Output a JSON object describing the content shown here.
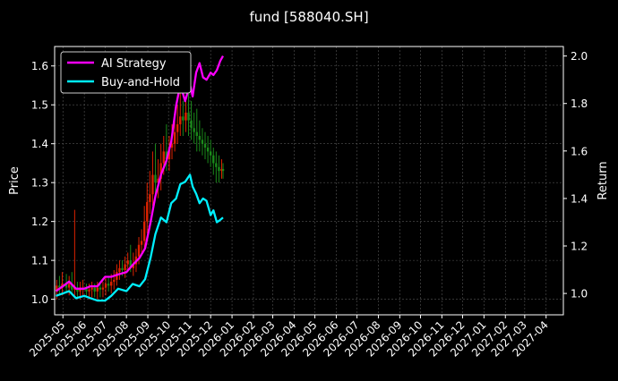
{
  "chart_data": {
    "type": "line",
    "title": "fund [588040.SH]",
    "ylabel_left": "Price",
    "ylabel_right": "Return",
    "ylim_left": [
      0.96,
      1.65
    ],
    "ylim_right": [
      0.91,
      2.04
    ],
    "y_ticks_left": [
      "1.0",
      "1.1",
      "1.2",
      "1.3",
      "1.4",
      "1.5",
      "1.6"
    ],
    "y_ticks_right": [
      "1.0",
      "1.2",
      "1.4",
      "1.6",
      "1.8",
      "2.0"
    ],
    "x_ticks": [
      "2025-05",
      "2025-06",
      "2025-07",
      "2025-08",
      "2025-09",
      "2025-10",
      "2025-11",
      "2025-12",
      "2026-01",
      "2026-02",
      "2026-03",
      "2026-04",
      "2026-05",
      "2026-06",
      "2026-07",
      "2026-08",
      "2026-09",
      "2026-10",
      "2026-11",
      "2026-12",
      "2027-01",
      "2027-02",
      "2027-03",
      "2027-04"
    ],
    "grid": true,
    "legend_position": "top-left",
    "colors": {
      "background": "#000000",
      "up_candle": "#dd2200",
      "down_candle": "#1a8a1a",
      "ai_strategy": "#ff00ff",
      "buy_and_hold": "#00f0ff"
    },
    "series": [
      {
        "name": "AI Strategy",
        "axis": "right",
        "x": [
          "2025-04-21",
          "2025-05-01",
          "2025-05-10",
          "2025-05-20",
          "2025-06-01",
          "2025-06-10",
          "2025-06-20",
          "2025-07-01",
          "2025-07-10",
          "2025-07-20",
          "2025-08-01",
          "2025-08-10",
          "2025-08-20",
          "2025-08-28",
          "2025-09-05",
          "2025-09-12",
          "2025-09-20",
          "2025-09-28",
          "2025-10-05",
          "2025-10-12",
          "2025-10-18",
          "2025-10-25",
          "2025-11-01",
          "2025-11-05",
          "2025-11-10",
          "2025-11-15",
          "2025-11-20",
          "2025-11-25",
          "2025-12-01",
          "2025-12-05",
          "2025-12-10",
          "2025-12-15",
          "2025-12-19"
        ],
        "values": [
          1.01,
          1.03,
          1.05,
          1.02,
          1.02,
          1.03,
          1.03,
          1.07,
          1.07,
          1.08,
          1.09,
          1.12,
          1.15,
          1.19,
          1.3,
          1.41,
          1.5,
          1.56,
          1.64,
          1.79,
          1.88,
          1.81,
          1.88,
          1.83,
          1.93,
          1.97,
          1.91,
          1.9,
          1.93,
          1.92,
          1.94,
          1.98,
          2.0
        ]
      },
      {
        "name": "Buy-and-Hold",
        "axis": "right",
        "x": [
          "2025-04-21",
          "2025-05-01",
          "2025-05-10",
          "2025-05-20",
          "2025-06-01",
          "2025-06-10",
          "2025-06-20",
          "2025-07-01",
          "2025-07-10",
          "2025-07-20",
          "2025-08-01",
          "2025-08-10",
          "2025-08-20",
          "2025-08-28",
          "2025-09-05",
          "2025-09-12",
          "2025-09-20",
          "2025-09-28",
          "2025-10-05",
          "2025-10-12",
          "2025-10-18",
          "2025-10-25",
          "2025-11-01",
          "2025-11-05",
          "2025-11-10",
          "2025-11-15",
          "2025-11-20",
          "2025-11-25",
          "2025-12-01",
          "2025-12-05",
          "2025-12-10",
          "2025-12-15",
          "2025-12-19"
        ],
        "values": [
          0.99,
          1.0,
          1.01,
          0.98,
          0.99,
          0.98,
          0.97,
          0.97,
          0.99,
          1.02,
          1.01,
          1.04,
          1.03,
          1.06,
          1.15,
          1.25,
          1.32,
          1.3,
          1.38,
          1.4,
          1.46,
          1.47,
          1.5,
          1.45,
          1.42,
          1.38,
          1.4,
          1.39,
          1.33,
          1.35,
          1.3,
          1.31,
          1.32
        ]
      }
    ],
    "candles": {
      "axis": "left",
      "x": [
        "2025-04-22",
        "2025-04-26",
        "2025-04-30",
        "2025-05-06",
        "2025-05-10",
        "2025-05-14",
        "2025-05-18",
        "2025-05-22",
        "2025-05-26",
        "2025-05-30",
        "2025-06-04",
        "2025-06-08",
        "2025-06-12",
        "2025-06-16",
        "2025-06-20",
        "2025-06-24",
        "2025-06-28",
        "2025-07-02",
        "2025-07-06",
        "2025-07-10",
        "2025-07-14",
        "2025-07-18",
        "2025-07-22",
        "2025-07-26",
        "2025-07-30",
        "2025-08-03",
        "2025-08-07",
        "2025-08-11",
        "2025-08-15",
        "2025-08-19",
        "2025-08-23",
        "2025-08-27",
        "2025-08-31",
        "2025-09-04",
        "2025-09-08",
        "2025-09-12",
        "2025-09-16",
        "2025-09-20",
        "2025-09-24",
        "2025-09-28",
        "2025-10-02",
        "2025-10-06",
        "2025-10-10",
        "2025-10-14",
        "2025-10-18",
        "2025-10-22",
        "2025-10-26",
        "2025-10-30",
        "2025-11-03",
        "2025-11-07",
        "2025-11-11",
        "2025-11-15",
        "2025-11-19",
        "2025-11-23",
        "2025-11-27",
        "2025-12-01",
        "2025-12-05",
        "2025-12-09",
        "2025-12-13",
        "2025-12-17",
        "2025-12-19"
      ],
      "open": [
        1.02,
        1.035,
        1.03,
        1.04,
        1.03,
        1.04,
        1.025,
        1.03,
        1.02,
        1.03,
        1.03,
        1.02,
        1.025,
        1.03,
        1.02,
        1.03,
        1.025,
        1.03,
        1.04,
        1.035,
        1.045,
        1.05,
        1.07,
        1.08,
        1.075,
        1.09,
        1.1,
        1.08,
        1.09,
        1.11,
        1.14,
        1.15,
        1.2,
        1.25,
        1.27,
        1.32,
        1.3,
        1.31,
        1.35,
        1.38,
        1.36,
        1.39,
        1.4,
        1.43,
        1.45,
        1.47,
        1.46,
        1.48,
        1.46,
        1.44,
        1.43,
        1.42,
        1.41,
        1.4,
        1.39,
        1.38,
        1.37,
        1.35,
        1.34,
        1.33,
        1.335
      ],
      "close": [
        1.035,
        1.03,
        1.04,
        1.03,
        1.04,
        1.025,
        1.03,
        1.02,
        1.03,
        1.03,
        1.02,
        1.025,
        1.03,
        1.02,
        1.03,
        1.025,
        1.03,
        1.04,
        1.035,
        1.045,
        1.05,
        1.07,
        1.08,
        1.075,
        1.09,
        1.1,
        1.08,
        1.09,
        1.11,
        1.14,
        1.15,
        1.2,
        1.25,
        1.27,
        1.32,
        1.3,
        1.31,
        1.35,
        1.38,
        1.36,
        1.39,
        1.4,
        1.43,
        1.45,
        1.47,
        1.46,
        1.48,
        1.46,
        1.44,
        1.43,
        1.42,
        1.41,
        1.4,
        1.39,
        1.38,
        1.37,
        1.35,
        1.34,
        1.33,
        1.335,
        1.33
      ],
      "high": [
        1.05,
        1.06,
        1.07,
        1.065,
        1.06,
        1.07,
        1.23,
        1.045,
        1.045,
        1.05,
        1.04,
        1.04,
        1.045,
        1.04,
        1.045,
        1.04,
        1.045,
        1.055,
        1.06,
        1.065,
        1.075,
        1.09,
        1.1,
        1.1,
        1.11,
        1.12,
        1.14,
        1.12,
        1.13,
        1.16,
        1.18,
        1.24,
        1.3,
        1.33,
        1.38,
        1.4,
        1.36,
        1.4,
        1.42,
        1.45,
        1.42,
        1.45,
        1.48,
        1.5,
        1.56,
        1.51,
        1.52,
        1.53,
        1.51,
        1.48,
        1.49,
        1.46,
        1.44,
        1.43,
        1.42,
        1.41,
        1.39,
        1.38,
        1.37,
        1.36,
        1.35
      ],
      "low": [
        1.0,
        1.01,
        1.01,
        1.02,
        1.01,
        1.015,
        1.01,
        1.005,
        1.0,
        1.01,
        1.005,
        1.0,
        1.005,
        1.005,
        1.0,
        1.005,
        1.005,
        1.01,
        1.02,
        1.015,
        1.025,
        1.035,
        1.05,
        1.06,
        1.055,
        1.07,
        1.07,
        1.06,
        1.07,
        1.09,
        1.12,
        1.13,
        1.17,
        1.22,
        1.24,
        1.26,
        1.26,
        1.28,
        1.32,
        1.33,
        1.33,
        1.36,
        1.38,
        1.4,
        1.42,
        1.42,
        1.43,
        1.42,
        1.41,
        1.4,
        1.38,
        1.38,
        1.37,
        1.36,
        1.35,
        1.34,
        1.32,
        1.3,
        1.3,
        1.31,
        1.31
      ]
    }
  }
}
